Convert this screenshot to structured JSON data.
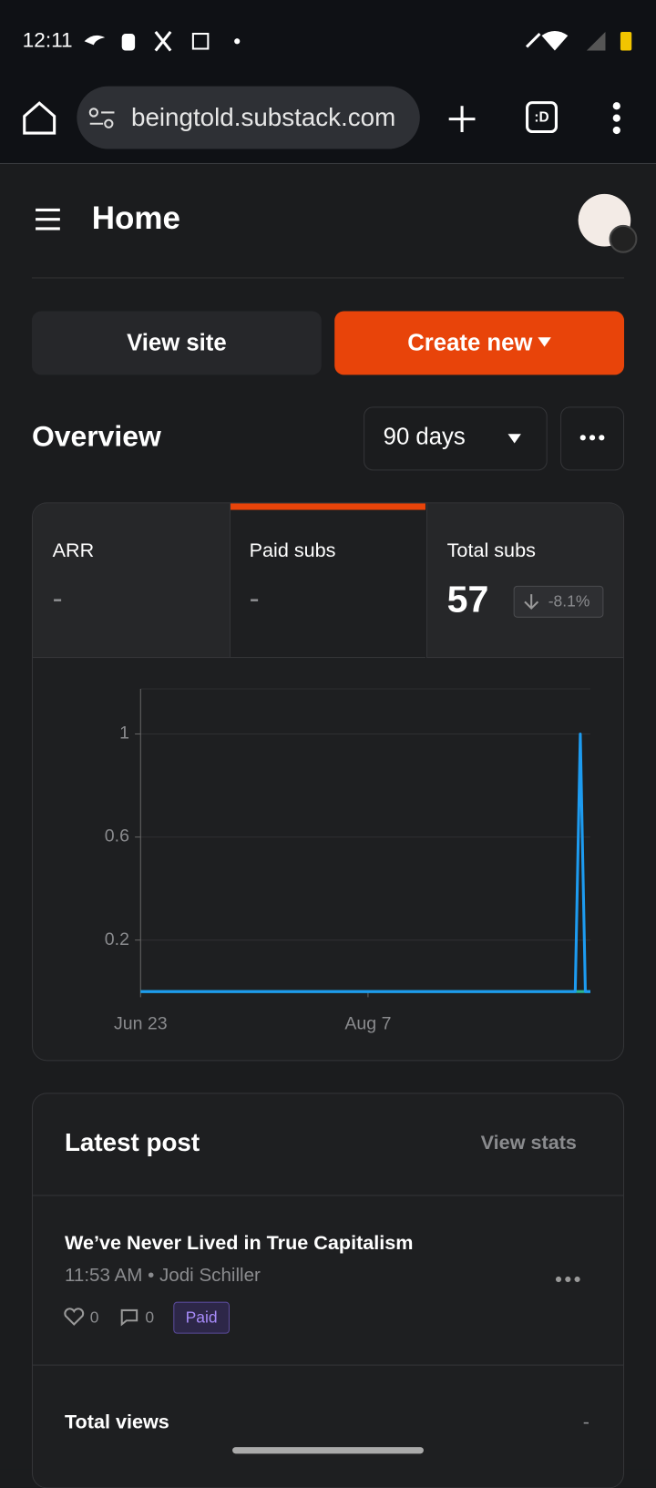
{
  "status_bar": {
    "time": "12:11"
  },
  "browser": {
    "url": "beingtold.substack.com",
    "tab_icon": ":D"
  },
  "header": {
    "title": "Home"
  },
  "buttons": {
    "view_site": "View site",
    "create_new": "Create new"
  },
  "overview": {
    "title": "Overview",
    "range": "90 days"
  },
  "metrics": [
    {
      "label": "ARR",
      "value": "-"
    },
    {
      "label": "Paid subs",
      "value": "-"
    },
    {
      "label": "Total subs",
      "value": 57,
      "change": "-8.1%"
    }
  ],
  "chart_data": {
    "type": "line",
    "x": [
      0,
      86,
      87,
      88,
      89
    ],
    "xlim": [
      0,
      89
    ],
    "xticks": [
      {
        "value": 0,
        "label": "Jun 23"
      },
      {
        "value": 45,
        "label": "Aug 7"
      }
    ],
    "ylim": [
      0,
      1.175
    ],
    "yticks": [
      0.2,
      0.6,
      1
    ],
    "grid": true,
    "series": [
      {
        "color": "#2bb58f",
        "values": [
          0,
          0,
          0,
          0,
          0
        ]
      },
      {
        "color": "#1d9bf0",
        "values": [
          0,
          0,
          1,
          0,
          0
        ]
      }
    ]
  },
  "latest_post": {
    "title": "Latest post",
    "view_stats": "View stats",
    "post_title": "We’ve Never Lived in True Capitalism",
    "meta": "11:53 AM • Jodi Schiller",
    "likes": 0,
    "comments": 0,
    "badge": "Paid",
    "total_views_label": "Total views",
    "total_views": "-"
  }
}
